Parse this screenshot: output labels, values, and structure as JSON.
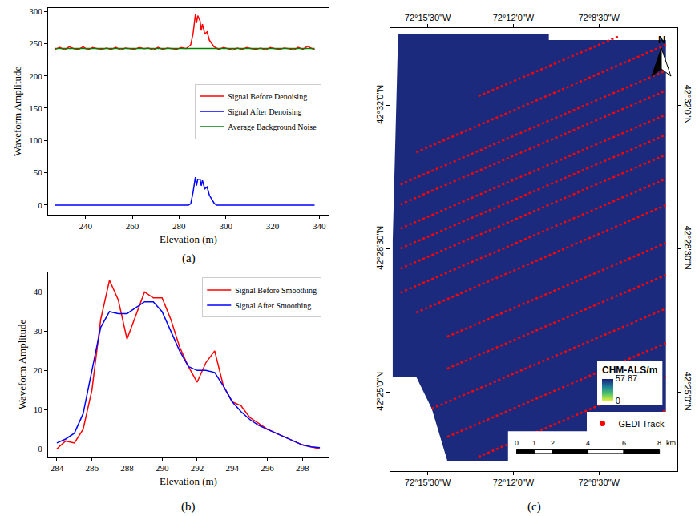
{
  "chart_data": [
    {
      "type": "line",
      "panel_label": "(a)",
      "x_label": "Elevation (m)",
      "y_label": "Waveform Amplitude",
      "xlim": [
        224,
        344
      ],
      "ylim": [
        -15,
        305
      ],
      "xticks": [
        240,
        260,
        280,
        300,
        320,
        340
      ],
      "yticks": [
        0,
        50,
        100,
        150,
        200,
        250,
        300
      ],
      "grid": false,
      "legend": "right",
      "series": [
        {
          "name": "Signal Before Denoising",
          "color": "red",
          "x": [
            227,
            229,
            231,
            233,
            235,
            237,
            239,
            241,
            243,
            245,
            247,
            249,
            251,
            253,
            255,
            257,
            259,
            261,
            263,
            265,
            267,
            269,
            271,
            273,
            275,
            277,
            279,
            281,
            283,
            285,
            286,
            287,
            287.5,
            288,
            289,
            289.5,
            290,
            291,
            292,
            293,
            294,
            295,
            296,
            297,
            299,
            301,
            303,
            305,
            307,
            309,
            311,
            313,
            315,
            317,
            319,
            321,
            323,
            325,
            327,
            329,
            331,
            333,
            335,
            337,
            338
          ],
          "values": [
            241,
            244,
            240,
            245,
            242,
            241,
            245,
            240,
            244,
            242,
            241,
            243,
            241,
            244,
            240,
            243,
            242,
            241,
            244,
            242,
            243,
            240,
            244,
            241,
            243,
            242,
            241,
            244,
            242,
            248,
            265,
            295,
            282,
            293,
            285,
            270,
            280,
            265,
            268,
            255,
            250,
            245,
            243,
            241,
            244,
            242,
            240,
            243,
            241,
            244,
            242,
            241,
            243,
            240,
            244,
            242,
            241,
            243,
            242,
            240,
            244,
            241,
            246,
            242,
            241
          ]
        },
        {
          "name": "Signal After Denoising",
          "color": "blue",
          "x": [
            227,
            284,
            285,
            286,
            287,
            287.5,
            288,
            289,
            289.5,
            290,
            291,
            292,
            293,
            294,
            295,
            296,
            338
          ],
          "values": [
            0,
            0,
            2,
            20,
            43,
            30,
            40,
            40,
            30,
            38,
            25,
            28,
            15,
            8,
            3,
            0,
            0
          ]
        },
        {
          "name": "Average Background Noise",
          "color": "green",
          "x": [
            227,
            338
          ],
          "values": [
            242.5,
            242.5
          ]
        }
      ]
    },
    {
      "type": "line",
      "panel_label": "(b)",
      "x_label": "Elevation (m)",
      "y_label": "Waveform Amplitude",
      "xlim": [
        283.5,
        299.5
      ],
      "ylim": [
        -2,
        45
      ],
      "xticks": [
        284,
        286,
        288,
        290,
        292,
        294,
        296,
        298
      ],
      "yticks": [
        0,
        10,
        20,
        30,
        40
      ],
      "grid": false,
      "legend": "upper right",
      "series": [
        {
          "name": "Signal Before Smoothing",
          "color": "red",
          "x": [
            284,
            284.5,
            285,
            285.5,
            286,
            286.5,
            287,
            287.5,
            288,
            288.5,
            289,
            289.5,
            290,
            290.5,
            291,
            291.5,
            292,
            292.5,
            293,
            293.5,
            294,
            294.5,
            295,
            295.5,
            296,
            296.5,
            297,
            297.5,
            298,
            298.5,
            299
          ],
          "values": [
            0,
            2,
            1.5,
            5,
            15,
            33,
            43,
            38,
            28,
            34,
            40,
            38.5,
            38.5,
            33,
            26,
            21,
            17,
            22,
            25,
            16,
            12,
            11,
            8,
            6.5,
            5,
            4,
            3,
            2,
            1,
            0.5,
            0
          ]
        },
        {
          "name": "Signal After Smoothing",
          "color": "blue",
          "x": [
            284,
            284.5,
            285,
            285.5,
            286,
            286.5,
            287,
            287.5,
            288,
            288.5,
            289,
            289.5,
            290,
            290.5,
            291,
            291.5,
            292,
            292.5,
            293,
            293.5,
            294,
            294.5,
            295,
            295.5,
            296,
            296.5,
            297,
            297.5,
            298,
            298.5,
            299
          ],
          "values": [
            1.5,
            2.5,
            4,
            9,
            20,
            31,
            35,
            34.5,
            34.5,
            36,
            37.5,
            37.5,
            35,
            30,
            25,
            21,
            20,
            20,
            19.5,
            16,
            12,
            9.5,
            7.5,
            6,
            5,
            4,
            3,
            2,
            1,
            0.5,
            0.3
          ]
        }
      ]
    },
    {
      "type": "map",
      "panel_label": "(c)",
      "xlim": [
        -72.2838,
        -72.0882
      ],
      "ylim": [
        42.3847,
        42.5649
      ],
      "xticks": [
        {
          "value": -72.25833,
          "label": "72°15'30\"W"
        },
        {
          "value": -72.2,
          "label": "72°12'0\"W"
        },
        {
          "value": -72.14167,
          "label": "72°8'30\"W"
        }
      ],
      "yticks": [
        {
          "value": 42.41667,
          "label": "42°25'0\"N"
        },
        {
          "value": 42.475,
          "label": "42°28'30\"N"
        },
        {
          "value": 42.53333,
          "label": "42°32'0\"N"
        }
      ],
      "grid": false,
      "legend": "lower right",
      "north_label": "N",
      "scale_bar": {
        "ticks": [
          0,
          1,
          2,
          4,
          6,
          8
        ],
        "unit": "km"
      },
      "colorbar": {
        "title": "CHM-ALS/m",
        "range": [
          0,
          57.87
        ],
        "ticks": [
          0,
          57.87
        ]
      },
      "study_area": {
        "color": "#1c2a7e",
        "lon": [
          -72.2785,
          -72.1758,
          -72.1758,
          -72.096,
          -72.096,
          -72.245,
          -72.2556,
          -72.2662,
          -72.2822,
          -72.2822,
          -72.2785
        ],
        "lat": [
          42.5626,
          42.5626,
          42.56,
          42.56,
          42.3889,
          42.3889,
          42.4101,
          42.4231,
          42.4231,
          42.4785,
          42.5626
        ]
      },
      "series": [
        {
          "name": "GEDI Track",
          "color": "red",
          "marker": "circle",
          "line_style": "dot",
          "tracks": [
            {
              "lon": [
                -72.2237,
                -72.1279
              ],
              "lat": [
                42.5372,
                42.5616
              ]
            },
            {
              "lon": [
                -72.2662,
                -72.096
              ],
              "lat": [
                42.5144,
                42.5581
              ]
            },
            {
              "lon": [
                -72.2769,
                -72.096
              ],
              "lat": [
                42.5013,
                42.5476
              ]
            },
            {
              "lon": [
                -72.2769,
                -72.096
              ],
              "lat": [
                42.4932,
                42.5395
              ]
            },
            {
              "lon": [
                -72.2769,
                -72.096
              ],
              "lat": [
                42.4834,
                42.5297
              ]
            },
            {
              "lon": [
                -72.2769,
                -72.096
              ],
              "lat": [
                42.4753,
                42.5215
              ]
            },
            {
              "lon": [
                -72.2769,
                -72.096
              ],
              "lat": [
                42.4671,
                42.5134
              ]
            },
            {
              "lon": [
                -72.2769,
                -72.096
              ],
              "lat": [
                42.4573,
                42.5036
              ]
            },
            {
              "lon": [
                -72.2662,
                -72.096
              ],
              "lat": [
                42.4492,
                42.4929
              ]
            },
            {
              "lon": [
                -72.245,
                -72.096
              ],
              "lat": [
                42.4394,
                42.4775
              ]
            },
            {
              "lon": [
                -72.245,
                -72.096
              ],
              "lat": [
                42.4264,
                42.4645
              ]
            },
            {
              "lon": [
                -72.2556,
                -72.096
              ],
              "lat": [
                42.4101,
                42.4508
              ]
            },
            {
              "lon": [
                -72.245,
                -72.096
              ],
              "lat": [
                42.3986,
                42.4368
              ]
            },
            {
              "lon": [
                -72.2237,
                -72.096
              ],
              "lat": [
                42.3905,
                42.4231
              ]
            },
            {
              "lon": [
                -72.1705,
                -72.096
              ],
              "lat": [
                42.3905,
                42.4094
              ]
            }
          ]
        }
      ]
    }
  ]
}
